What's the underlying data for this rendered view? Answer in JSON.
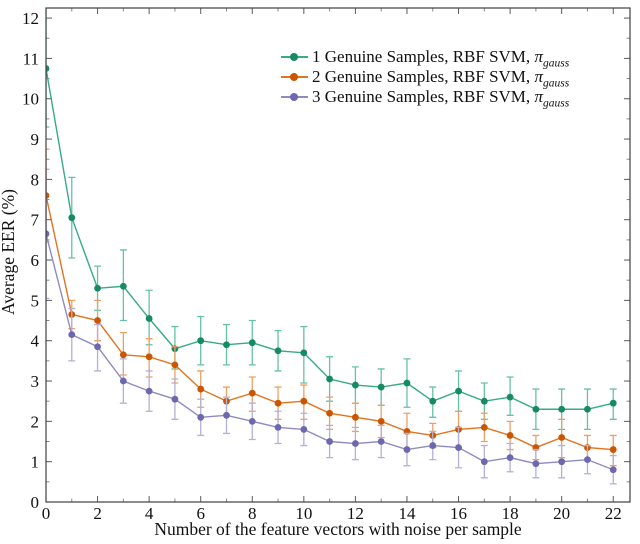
{
  "figure": {
    "kind": "error-bar line chart, LaTeX/pgfplots style, framed axes, no grid"
  },
  "chart_data": {
    "type": "line",
    "title": "",
    "xlabel": "Number of the feature vectors with noise per sample",
    "ylabel": "Average EER (%)",
    "xlim": [
      0,
      22.65
    ],
    "ylim": [
      0,
      12.25
    ],
    "x_ticks": [
      0,
      2,
      4,
      6,
      8,
      10,
      12,
      14,
      16,
      18,
      20,
      22
    ],
    "y_ticks": [
      0,
      1,
      2,
      3,
      4,
      5,
      6,
      7,
      8,
      9,
      10,
      11,
      12
    ],
    "minor_x_step": 1,
    "minor_y_step": 0.5,
    "grid": false,
    "error_bars": true,
    "legend_position": "upper right inside",
    "x": [
      0,
      1,
      2,
      3,
      4,
      5,
      6,
      7,
      8,
      9,
      10,
      11,
      12,
      13,
      14,
      15,
      16,
      17,
      18,
      19,
      20,
      21,
      22
    ],
    "series": [
      {
        "name": "1 Genuine Samples, RBF SVM, πgauss",
        "legend_prefix": "1 Genuine Samples, RBF SVM, ",
        "legend_symbol": "π",
        "legend_subscript": "gauss",
        "color": "#178a63",
        "line_color": "#34ab89",
        "error_color": "#66c2a5",
        "values": [
          10.75,
          7.05,
          5.3,
          5.35,
          4.55,
          3.8,
          4.0,
          3.9,
          3.95,
          3.75,
          3.7,
          3.05,
          2.9,
          2.85,
          2.95,
          2.5,
          2.75,
          2.5,
          2.6,
          2.3,
          2.3,
          2.3,
          2.45
        ],
        "err_minus": [
          1.45,
          1.0,
          0.55,
          0.85,
          0.65,
          0.5,
          0.6,
          0.5,
          0.55,
          0.5,
          0.75,
          0.55,
          0.45,
          0.45,
          0.6,
          0.4,
          0.5,
          0.45,
          0.45,
          0.5,
          0.5,
          0.5,
          0.4
        ],
        "err_plus": [
          1.6,
          1.0,
          0.55,
          0.9,
          0.7,
          0.55,
          0.6,
          0.5,
          0.55,
          0.5,
          0.65,
          0.55,
          0.45,
          0.45,
          0.6,
          0.35,
          0.5,
          0.45,
          0.5,
          0.5,
          0.5,
          0.5,
          0.35
        ]
      },
      {
        "name": "2 Genuine Samples, RBF SVM, πgauss",
        "legend_prefix": "2 Genuine Samples, RBF SVM, ",
        "legend_symbol": "π",
        "legend_subscript": "gauss",
        "color": "#cc5502",
        "line_color": "#e2731f",
        "error_color": "#edA066",
        "values": [
          7.6,
          4.65,
          4.5,
          3.65,
          3.6,
          3.4,
          2.8,
          2.5,
          2.7,
          2.45,
          2.5,
          2.2,
          2.1,
          2.0,
          1.75,
          1.65,
          1.8,
          1.85,
          1.65,
          1.35,
          1.6,
          1.35,
          1.3
        ],
        "err_minus": [
          1.15,
          0.35,
          0.5,
          0.5,
          0.5,
          0.45,
          0.45,
          0.35,
          0.45,
          0.4,
          0.45,
          0.4,
          0.35,
          0.4,
          0.45,
          0.3,
          0.45,
          0.35,
          0.35,
          0.3,
          0.5,
          0.3,
          0.4
        ],
        "err_plus": [
          1.15,
          0.35,
          0.5,
          0.55,
          0.45,
          0.45,
          0.45,
          0.35,
          0.4,
          0.4,
          0.4,
          0.4,
          0.35,
          0.4,
          0.45,
          0.3,
          0.45,
          0.35,
          0.35,
          0.3,
          0.45,
          0.3,
          0.35
        ]
      },
      {
        "name": "3 Genuine Samples, RBF SVM, πgauss",
        "legend_prefix": "3 Genuine Samples, RBF SVM, ",
        "legend_symbol": "π",
        "legend_subscript": "gauss",
        "color": "#6d68ad",
        "line_color": "#8f8ac4",
        "error_color": "#b4b0d8",
        "values": [
          6.65,
          4.15,
          3.85,
          3.0,
          2.75,
          2.55,
          2.1,
          2.15,
          2.0,
          1.85,
          1.8,
          1.5,
          1.45,
          1.5,
          1.3,
          1.4,
          1.35,
          1.0,
          1.1,
          0.95,
          1.0,
          1.05,
          0.8
        ],
        "err_minus": [
          1.6,
          0.65,
          0.6,
          0.55,
          0.5,
          0.5,
          0.45,
          0.45,
          0.45,
          0.4,
          0.4,
          0.4,
          0.4,
          0.4,
          0.4,
          0.35,
          0.5,
          0.4,
          0.35,
          0.35,
          0.4,
          0.35,
          0.35
        ],
        "err_plus": [
          1.6,
          0.65,
          0.55,
          0.55,
          0.5,
          0.5,
          0.45,
          0.45,
          0.45,
          0.4,
          0.4,
          0.4,
          0.4,
          0.4,
          0.4,
          0.35,
          0.5,
          0.4,
          0.35,
          0.35,
          0.4,
          0.35,
          0.35
        ]
      }
    ]
  }
}
